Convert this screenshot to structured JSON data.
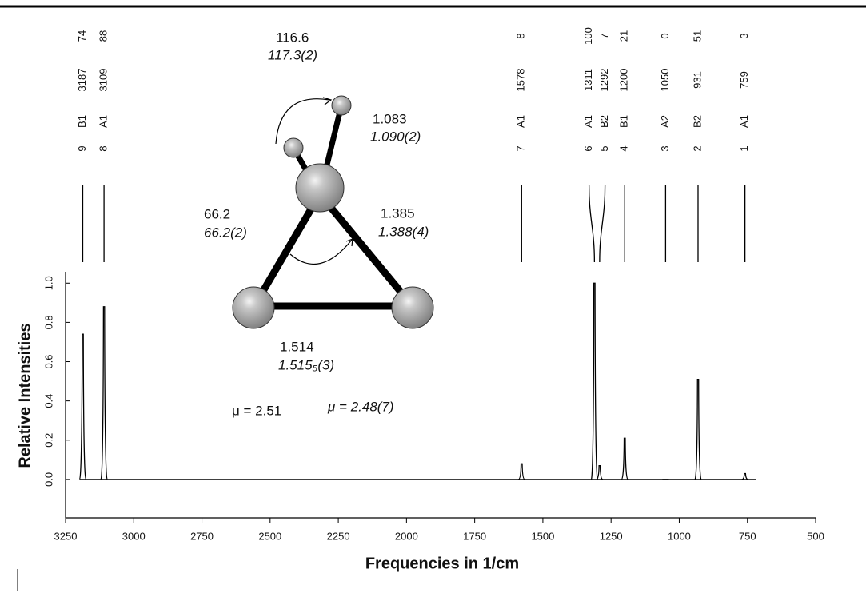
{
  "chart_data": {
    "type": "spike",
    "xlabel": "Frequencies in 1/cm",
    "ylabel": "Relative Intensities",
    "modes": [
      "9",
      "8",
      "7",
      "6",
      "5",
      "4",
      "3",
      "2",
      "1"
    ],
    "symmetry": [
      "B1",
      "A1",
      "A1",
      "A1",
      "B2",
      "B1",
      "A2",
      "B2",
      "A1"
    ],
    "x": [
      3187,
      3109,
      1578,
      1311,
      1292,
      1200,
      1050,
      931,
      759
    ],
    "values": [
      0.74,
      0.88,
      0.08,
      1.0,
      0.07,
      0.21,
      0,
      0.51,
      0.03
    ],
    "value_labels": [
      "74",
      "88",
      "8",
      "100",
      "7",
      "21",
      "0",
      "51",
      "3"
    ],
    "color": "#000000",
    "xlim": [
      3250,
      500
    ],
    "xticks": [
      3250,
      3000,
      2750,
      2500,
      2250,
      2000,
      1750,
      1500,
      1250,
      1000,
      750,
      500
    ],
    "ylim": [
      -0.2,
      1.05
    ],
    "yticks": [
      {
        "value": 0,
        "label": "0.0"
      },
      0.2,
      0.4,
      0.6,
      0.8,
      {
        "value": 1,
        "label": "1.0"
      }
    ],
    "annotations": [
      "116.6",
      "117.3(2)",
      "1.083",
      "1.090(2)",
      "66.2",
      "66.2(2)",
      "1.385",
      "1.388(4)",
      "1.514",
      "1.515₅(3)",
      "μ = 2.51",
      "μ = 2.48(7)"
    ]
  }
}
